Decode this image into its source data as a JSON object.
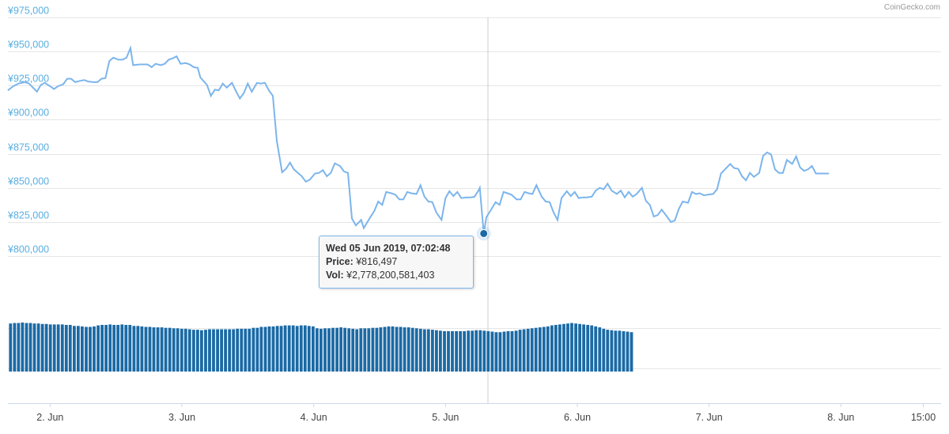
{
  "credit": "CoinGecko.com",
  "tooltip": {
    "date": "Wed 05 Jun 2019, 07:02:48",
    "price_label": "Price:",
    "price_value": "¥816,497",
    "vol_label": "Vol:",
    "vol_value": "¥2,778,200,581,403"
  },
  "colors": {
    "line": "#7cb5ec",
    "bars": "#1b6aa5",
    "marker": "#1b6aa5",
    "axis_text": "#5aaee0"
  },
  "chart_data": {
    "type": "line",
    "y_ticks": [
      "¥800,000",
      "¥825,000",
      "¥850,000",
      "¥875,000",
      "¥900,000",
      "¥925,000",
      "¥950,000",
      "¥975,000"
    ],
    "y_tick_values": [
      800000,
      825000,
      850000,
      875000,
      900000,
      925000,
      950000,
      975000
    ],
    "ylim": [
      775000,
      975000
    ],
    "x_ticks": [
      "2. Jun",
      "3. Jun",
      "4. Jun",
      "5. Jun",
      "6. Jun",
      "7. Jun",
      "8. Jun",
      "15:00"
    ],
    "x_tick_positions_days": [
      1.0,
      2.0,
      3.0,
      4.0,
      5.0,
      6.0,
      7.0,
      7.625
    ],
    "xlim_days": [
      0.68,
      7.76
    ],
    "grid": true,
    "hovered_point": {
      "day": 4.29,
      "price": 816497
    },
    "series": [
      {
        "type": "line",
        "points": [
          [
            0.68,
            921500
          ],
          [
            0.72,
            924500
          ],
          [
            0.76,
            926500
          ],
          [
            0.81,
            927500
          ],
          [
            0.84,
            926500
          ],
          [
            0.86,
            924500
          ],
          [
            0.9,
            920500
          ],
          [
            0.93,
            925500
          ],
          [
            0.96,
            927000
          ],
          [
            1.0,
            924500
          ],
          [
            1.03,
            922500
          ],
          [
            1.06,
            924500
          ],
          [
            1.1,
            926000
          ],
          [
            1.13,
            930000
          ],
          [
            1.16,
            930000
          ],
          [
            1.19,
            927500
          ],
          [
            1.23,
            928500
          ],
          [
            1.26,
            929000
          ],
          [
            1.29,
            928000
          ],
          [
            1.33,
            927500
          ],
          [
            1.36,
            927500
          ],
          [
            1.39,
            930000
          ],
          [
            1.42,
            930500
          ],
          [
            1.45,
            943000
          ],
          [
            1.48,
            945500
          ],
          [
            1.52,
            944000
          ],
          [
            1.55,
            944000
          ],
          [
            1.58,
            945500
          ],
          [
            1.61,
            952500
          ],
          [
            1.63,
            940000
          ],
          [
            1.68,
            940500
          ],
          [
            1.74,
            940500
          ],
          [
            1.77,
            938500
          ],
          [
            1.8,
            941000
          ],
          [
            1.84,
            940000
          ],
          [
            1.87,
            941000
          ],
          [
            1.9,
            944000
          ],
          [
            1.93,
            945000
          ],
          [
            1.96,
            946500
          ],
          [
            1.99,
            941000
          ],
          [
            2.03,
            941500
          ],
          [
            2.06,
            940500
          ],
          [
            2.09,
            938500
          ],
          [
            2.12,
            938000
          ],
          [
            2.14,
            931000
          ],
          [
            2.19,
            925500
          ],
          [
            2.22,
            917500
          ],
          [
            2.25,
            922000
          ],
          [
            2.28,
            921500
          ],
          [
            2.31,
            926500
          ],
          [
            2.34,
            923500
          ],
          [
            2.38,
            927000
          ],
          [
            2.41,
            921000
          ],
          [
            2.44,
            915500
          ],
          [
            2.47,
            919500
          ],
          [
            2.5,
            926500
          ],
          [
            2.53,
            920500
          ],
          [
            2.57,
            927000
          ],
          [
            2.6,
            926500
          ],
          [
            2.63,
            927000
          ],
          [
            2.66,
            921500
          ],
          [
            2.69,
            917500
          ],
          [
            2.72,
            884500
          ],
          [
            2.76,
            861500
          ],
          [
            2.79,
            864000
          ],
          [
            2.82,
            868500
          ],
          [
            2.85,
            863500
          ],
          [
            2.88,
            861000
          ],
          [
            2.91,
            858500
          ],
          [
            2.94,
            854500
          ],
          [
            2.97,
            856000
          ],
          [
            3.01,
            860500
          ],
          [
            3.04,
            861000
          ],
          [
            3.07,
            863000
          ],
          [
            3.1,
            858500
          ],
          [
            3.13,
            861000
          ],
          [
            3.16,
            868000
          ],
          [
            3.2,
            866000
          ],
          [
            3.23,
            862000
          ],
          [
            3.26,
            861000
          ],
          [
            3.29,
            827500
          ],
          [
            3.32,
            822500
          ],
          [
            3.36,
            826500
          ],
          [
            3.38,
            820500
          ],
          [
            3.43,
            828500
          ],
          [
            3.46,
            833000
          ],
          [
            3.49,
            840000
          ],
          [
            3.52,
            837500
          ],
          [
            3.55,
            847000
          ],
          [
            3.59,
            846000
          ],
          [
            3.62,
            845000
          ],
          [
            3.65,
            841500
          ],
          [
            3.68,
            841500
          ],
          [
            3.71,
            847000
          ],
          [
            3.74,
            846000
          ],
          [
            3.78,
            845500
          ],
          [
            3.81,
            852000
          ],
          [
            3.84,
            843500
          ],
          [
            3.87,
            840000
          ],
          [
            3.9,
            839500
          ],
          [
            3.93,
            832000
          ],
          [
            3.97,
            826500
          ],
          [
            4.0,
            842500
          ],
          [
            4.03,
            847500
          ],
          [
            4.06,
            844000
          ],
          [
            4.09,
            847000
          ],
          [
            4.12,
            842500
          ],
          [
            4.16,
            843000
          ],
          [
            4.19,
            843000
          ],
          [
            4.22,
            843500
          ],
          [
            4.25,
            848000
          ],
          [
            4.26,
            850000
          ],
          [
            4.29,
            816497
          ],
          [
            4.31,
            828500
          ],
          [
            4.34,
            833000
          ],
          [
            4.38,
            839500
          ],
          [
            4.41,
            837500
          ],
          [
            4.44,
            847000
          ],
          [
            4.47,
            846000
          ],
          [
            4.5,
            845000
          ],
          [
            4.54,
            841500
          ],
          [
            4.57,
            841500
          ],
          [
            4.6,
            847000
          ],
          [
            4.63,
            846000
          ],
          [
            4.66,
            845500
          ],
          [
            4.69,
            852000
          ],
          [
            4.73,
            843500
          ],
          [
            4.76,
            840000
          ],
          [
            4.79,
            839500
          ],
          [
            4.82,
            832000
          ],
          [
            4.85,
            826500
          ],
          [
            4.88,
            842500
          ],
          [
            4.92,
            847500
          ],
          [
            4.95,
            844000
          ],
          [
            4.98,
            847000
          ],
          [
            5.01,
            842500
          ],
          [
            5.04,
            843000
          ],
          [
            5.07,
            843000
          ],
          [
            5.11,
            843500
          ],
          [
            5.14,
            848000
          ],
          [
            5.17,
            850000
          ],
          [
            5.2,
            849000
          ],
          [
            5.23,
            853000
          ],
          [
            5.26,
            848000
          ],
          [
            5.3,
            845500
          ],
          [
            5.33,
            848000
          ],
          [
            5.36,
            843000
          ],
          [
            5.39,
            847000
          ],
          [
            5.42,
            843500
          ],
          [
            5.45,
            845500
          ],
          [
            5.49,
            850000
          ],
          [
            5.52,
            840500
          ],
          [
            5.55,
            837500
          ],
          [
            5.58,
            829000
          ],
          [
            5.61,
            830000
          ],
          [
            5.64,
            834000
          ],
          [
            5.68,
            829000
          ],
          [
            5.71,
            825000
          ],
          [
            5.74,
            826000
          ],
          [
            5.77,
            834500
          ],
          [
            5.8,
            840000
          ],
          [
            5.84,
            839000
          ],
          [
            5.87,
            847000
          ],
          [
            5.9,
            845500
          ],
          [
            5.93,
            846000
          ],
          [
            5.96,
            844500
          ],
          [
            5.99,
            845000
          ],
          [
            6.03,
            845500
          ],
          [
            6.06,
            849000
          ],
          [
            6.09,
            860500
          ],
          [
            6.12,
            863500
          ],
          [
            6.16,
            867500
          ],
          [
            6.19,
            864500
          ],
          [
            6.22,
            864000
          ],
          [
            6.25,
            858500
          ],
          [
            6.28,
            855500
          ],
          [
            6.31,
            861000
          ],
          [
            6.34,
            858000
          ],
          [
            6.38,
            861000
          ],
          [
            6.41,
            873500
          ],
          [
            6.44,
            876000
          ],
          [
            6.47,
            874500
          ],
          [
            6.5,
            863500
          ],
          [
            6.53,
            861000
          ],
          [
            6.56,
            861000
          ],
          [
            6.59,
            870500
          ],
          [
            6.63,
            867500
          ],
          [
            6.66,
            873000
          ],
          [
            6.69,
            865000
          ],
          [
            6.72,
            862500
          ],
          [
            6.75,
            863500
          ],
          [
            6.78,
            866000
          ],
          [
            6.81,
            860500
          ],
          [
            6.84,
            860500
          ],
          [
            6.88,
            860500
          ],
          [
            6.91,
            860500
          ]
        ]
      },
      {
        "type": "bar",
        "name": "Vol",
        "note": "volume shown as bars; relative magnitude only (no volume axis printed)",
        "start_day": 0.7,
        "step_day": 0.0302,
        "values": [
          100,
          101,
          101,
          102,
          101,
          101,
          100,
          100,
          99,
          99,
          98,
          98,
          98,
          98,
          97,
          97,
          95,
          95,
          94,
          93,
          93,
          94,
          96,
          97,
          97,
          98,
          97,
          97,
          98,
          97,
          97,
          95,
          95,
          94,
          93,
          93,
          92,
          92,
          92,
          91,
          91,
          90,
          90,
          89,
          89,
          88,
          87,
          87,
          86,
          87,
          88,
          88,
          88,
          88,
          88,
          88,
          88,
          89,
          89,
          89,
          89,
          91,
          91,
          93,
          93,
          94,
          94,
          95,
          95,
          96,
          96,
          96,
          95,
          96,
          96,
          95,
          94,
          90,
          89,
          90,
          90,
          91,
          91,
          92,
          91,
          90,
          89,
          88,
          90,
          90,
          90,
          91,
          91,
          92,
          93,
          94,
          94,
          93,
          93,
          92,
          92,
          91,
          90,
          89,
          88,
          88,
          87,
          86,
          85,
          84,
          84,
          84,
          84,
          84,
          84,
          85,
          85,
          86,
          86,
          85,
          84,
          83,
          82,
          82,
          83,
          84,
          84,
          85,
          87,
          88,
          89,
          90,
          91,
          92,
          93,
          94,
          96,
          97,
          98,
          99,
          100,
          101,
          100,
          99,
          98,
          97,
          96,
          94,
          92,
          89,
          87,
          86,
          85,
          85,
          84,
          83,
          82
        ]
      }
    ]
  }
}
